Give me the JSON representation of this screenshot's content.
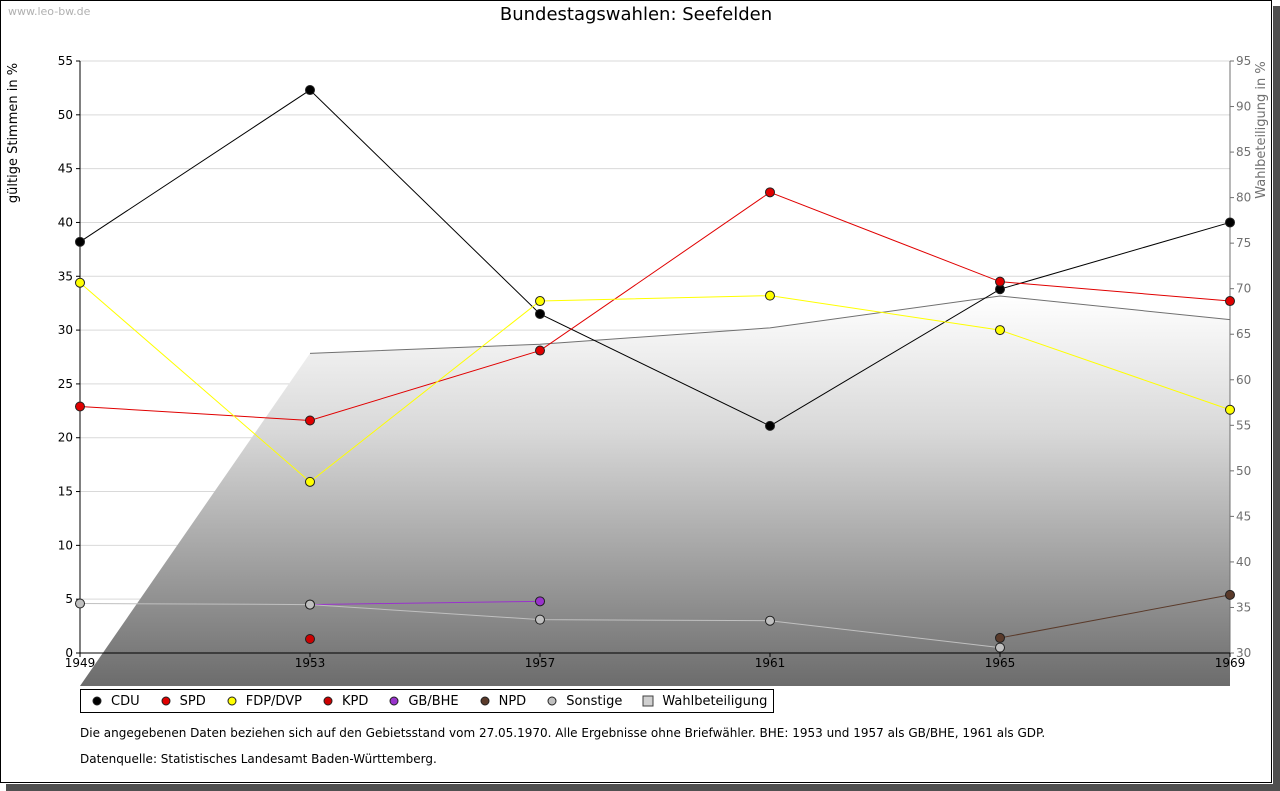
{
  "watermark": "www.leo-bw.de",
  "chart_data": {
    "type": "line",
    "title": "Bundestagswahlen: Seefelden",
    "ylabel": "gültige Stimmen in %",
    "y2label": "Wahlbeteiligung in %",
    "x": [
      1949,
      1953,
      1957,
      1961,
      1965,
      1969
    ],
    "ylim": [
      0,
      55
    ],
    "y2lim": [
      30,
      95
    ],
    "yticks": [
      0,
      5,
      10,
      15,
      20,
      25,
      30,
      35,
      40,
      45,
      50,
      55
    ],
    "y2ticks": [
      30,
      35,
      40,
      45,
      50,
      55,
      60,
      65,
      70,
      75,
      80,
      85,
      90,
      95
    ],
    "grid": true,
    "legend_position": "bottom",
    "series": [
      {
        "name": "CDU",
        "color": "#000000",
        "values": [
          38.2,
          52.3,
          31.5,
          21.1,
          33.8,
          40.0
        ]
      },
      {
        "name": "SPD",
        "color": "#e00000",
        "values": [
          22.9,
          21.6,
          28.1,
          42.8,
          34.5,
          32.7
        ]
      },
      {
        "name": "FDP/DVP",
        "color": "#ffff00",
        "values": [
          34.4,
          15.9,
          32.7,
          33.2,
          30.0,
          22.6
        ]
      },
      {
        "name": "KPD",
        "color": "#cc0000",
        "values": [
          null,
          1.3,
          null,
          null,
          null,
          null
        ]
      },
      {
        "name": "GB/BHE",
        "color": "#9933cc",
        "values": [
          null,
          4.5,
          4.8,
          null,
          null,
          null
        ]
      },
      {
        "name": "NPD",
        "color": "#5a3a2a",
        "values": [
          null,
          null,
          null,
          null,
          1.4,
          5.4
        ]
      },
      {
        "name": "Sonstige",
        "color": "#c0c0c0",
        "values": [
          4.6,
          4.5,
          3.1,
          3.0,
          0.5,
          null
        ]
      }
    ],
    "turnout": {
      "name": "Wahlbeteiligung",
      "axis": "right",
      "values": [
        null,
        62.9,
        63.9,
        65.7,
        69.2,
        66.6
      ]
    }
  },
  "notes": [
    "Die angegebenen Daten beziehen sich auf den Gebietsstand vom 27.05.1970. Alle Ergebnisse ohne Briefwähler. BHE: 1953 und 1957 als GB/BHE, 1961 als GDP.",
    "Datenquelle: Statistisches Landesamt Baden-Württemberg."
  ]
}
